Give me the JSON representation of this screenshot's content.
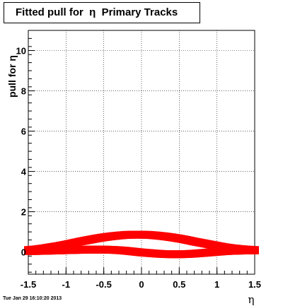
{
  "title": "Fitted pull for  η  Primary Tracks",
  "footer": {
    "timestamp": "Tue Jan 29 16:10:20 2013"
  },
  "chart_data": {
    "type": "scatter",
    "title": "Fitted pull for  η  Primary Tracks",
    "xlabel": "η",
    "ylabel": "pull for η",
    "xlim": [
      -1.5,
      1.5
    ],
    "ylim": [
      -1.1,
      11.0
    ],
    "grid": true,
    "x_ticks": [
      -1.5,
      -1,
      -0.5,
      0,
      0.5,
      1,
      1.5
    ],
    "x_tick_labels": [
      "-1.5",
      "-1",
      "-0.5",
      "0",
      "0.5",
      "1",
      "1.5"
    ],
    "y_ticks": [
      0,
      2,
      4,
      6,
      8,
      10
    ],
    "y_tick_labels": [
      "0",
      "2",
      "4",
      "6",
      "8",
      "10"
    ],
    "marker_color": "#ff0000",
    "series": [
      {
        "x": [
          -1.5,
          -1.4,
          -1.3,
          -1.2,
          -1.1,
          -1.0,
          -0.9,
          -0.8,
          -0.7,
          -0.6,
          -0.5,
          -0.4,
          -0.3,
          -0.2,
          -0.1,
          0.0,
          0.1,
          0.2,
          0.3,
          0.4,
          0.5,
          0.6,
          0.7,
          0.8,
          0.9,
          1.0,
          1.1,
          1.2,
          1.3,
          1.4,
          1.5
        ],
        "y": [
          0.1,
          0.13,
          0.18,
          0.24,
          0.3,
          0.37,
          0.45,
          0.53,
          0.6,
          0.67,
          0.73,
          0.78,
          0.82,
          0.85,
          0.86,
          0.86,
          0.85,
          0.82,
          0.78,
          0.73,
          0.67,
          0.6,
          0.52,
          0.45,
          0.38,
          0.31,
          0.24,
          0.19,
          0.15,
          0.12,
          0.1
        ]
      },
      {
        "x": [
          -1.5,
          -1.4,
          -1.3,
          -1.2,
          -1.1,
          -1.0,
          -0.9,
          -0.8,
          -0.7,
          -0.6,
          -0.5,
          -0.4,
          -0.3,
          -0.2,
          -0.1,
          0.0,
          0.1,
          0.2,
          0.3,
          0.4,
          0.5,
          0.6,
          0.7,
          0.8,
          0.9,
          1.0,
          1.1,
          1.2,
          1.3,
          1.4,
          1.5
        ],
        "y": [
          0.05,
          0.05,
          0.06,
          0.07,
          0.08,
          0.09,
          0.1,
          0.11,
          0.12,
          0.12,
          0.12,
          0.11,
          0.09,
          0.06,
          0.02,
          -0.02,
          -0.05,
          -0.08,
          -0.1,
          -0.11,
          -0.11,
          -0.1,
          -0.08,
          -0.05,
          -0.02,
          0.01,
          0.04,
          0.06,
          0.07,
          0.08,
          0.08
        ]
      }
    ]
  }
}
